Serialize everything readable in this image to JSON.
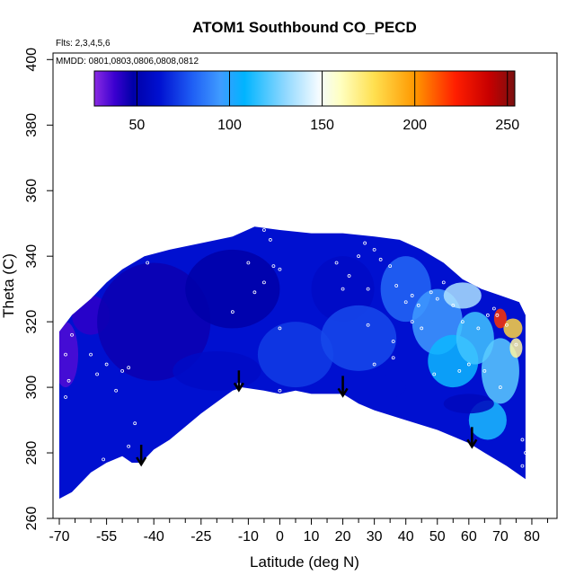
{
  "chart_data": {
    "type": "heatmap",
    "title": "ATOM1 Southbound CO_PECD",
    "annotations": {
      "flights": "Flts: 2,3,4,5,6",
      "dates": "MMDD: 0801,0803,0806,0808,0812"
    },
    "xlabel": "Latitude (deg N)",
    "ylabel": "Theta (C)",
    "xlim": [
      -72,
      88
    ],
    "ylim": [
      260,
      402
    ],
    "x_ticks_major": [
      -70,
      -55,
      -40,
      -25,
      -10,
      0,
      10,
      20,
      30,
      40,
      50,
      60,
      70,
      80
    ],
    "x_tick_labels": [
      "-70",
      "-55",
      "-40",
      "-25",
      "-10",
      "0",
      "10",
      "20",
      "30",
      "40",
      "50",
      "60",
      "70",
      "80"
    ],
    "x_ticks_minor": [
      -65,
      -60,
      -50,
      -45,
      -35,
      -30,
      -20,
      -15,
      -5,
      5,
      15,
      25,
      35,
      45,
      55,
      65,
      75,
      85
    ],
    "y_ticks": [
      260,
      280,
      300,
      320,
      340,
      360,
      380,
      400
    ],
    "y_tick_labels": [
      "260",
      "280",
      "300",
      "320",
      "340",
      "360",
      "380",
      "400"
    ],
    "colorbar": {
      "vmin": 27,
      "vmax": 254,
      "ticks": [
        50,
        100,
        150,
        200,
        250
      ],
      "tick_labels": [
        "50",
        "100",
        "150",
        "200",
        "250"
      ],
      "stops": [
        {
          "v": 27,
          "c": "#8a2be2"
        },
        {
          "v": 38,
          "c": "#3a00d0"
        },
        {
          "v": 48,
          "c": "#0000a8"
        },
        {
          "v": 62,
          "c": "#0010d0"
        },
        {
          "v": 80,
          "c": "#1f5ff5"
        },
        {
          "v": 95,
          "c": "#3f9bff"
        },
        {
          "v": 108,
          "c": "#00b4ff"
        },
        {
          "v": 130,
          "c": "#8fd8ff"
        },
        {
          "v": 148,
          "c": "#f4fbff"
        },
        {
          "v": 160,
          "c": "#ffffc0"
        },
        {
          "v": 178,
          "c": "#ffe050"
        },
        {
          "v": 200,
          "c": "#ff9800"
        },
        {
          "v": 222,
          "c": "#ff1e00"
        },
        {
          "v": 240,
          "c": "#c80000"
        },
        {
          "v": 254,
          "c": "#7a1010"
        }
      ]
    },
    "field": {
      "envelope_top": [
        [
          -70,
          317
        ],
        [
          -66,
          322
        ],
        [
          -60,
          327
        ],
        [
          -55,
          332
        ],
        [
          -50,
          336
        ],
        [
          -43,
          340
        ],
        [
          -35,
          342
        ],
        [
          -25,
          344
        ],
        [
          -15,
          346
        ],
        [
          -8,
          349
        ],
        [
          0,
          348
        ],
        [
          10,
          347
        ],
        [
          20,
          347
        ],
        [
          30,
          346
        ],
        [
          38,
          345
        ],
        [
          45,
          342
        ],
        [
          52,
          338
        ],
        [
          58,
          333
        ],
        [
          64,
          330
        ],
        [
          70,
          328
        ],
        [
          76,
          326
        ],
        [
          78,
          322
        ]
      ],
      "envelope_bottom": [
        [
          78,
          272
        ],
        [
          72,
          276
        ],
        [
          65,
          280
        ],
        [
          60,
          283
        ],
        [
          50,
          287
        ],
        [
          40,
          290
        ],
        [
          30,
          293
        ],
        [
          25,
          295
        ],
        [
          20,
          298
        ],
        [
          10,
          298
        ],
        [
          5,
          299
        ],
        [
          0,
          298
        ],
        [
          -5,
          299
        ],
        [
          -12,
          300
        ],
        [
          -15,
          299
        ],
        [
          -25,
          292
        ],
        [
          -30,
          288
        ],
        [
          -35,
          284
        ],
        [
          -40,
          281
        ],
        [
          -44,
          277
        ],
        [
          -47,
          277
        ],
        [
          -50,
          279
        ],
        [
          -55,
          277
        ],
        [
          -60,
          274
        ],
        [
          -66,
          268
        ],
        [
          -70,
          266
        ]
      ],
      "patches": [
        {
          "lat": -68,
          "theta": 310,
          "rlat": 4,
          "rtheta": 10,
          "v": 35
        },
        {
          "lat": -60,
          "theta": 322,
          "rlat": 6,
          "rtheta": 6,
          "v": 40
        },
        {
          "lat": -40,
          "theta": 320,
          "rlat": 18,
          "rtheta": 18,
          "v": 46
        },
        {
          "lat": -15,
          "theta": 330,
          "rlat": 15,
          "rtheta": 12,
          "v": 48
        },
        {
          "lat": -20,
          "theta": 305,
          "rlat": 14,
          "rtheta": 6,
          "v": 58
        },
        {
          "lat": 5,
          "theta": 310,
          "rlat": 12,
          "rtheta": 10,
          "v": 72
        },
        {
          "lat": 20,
          "theta": 330,
          "rlat": 10,
          "rtheta": 10,
          "v": 58
        },
        {
          "lat": 25,
          "theta": 315,
          "rlat": 12,
          "rtheta": 10,
          "v": 75
        },
        {
          "lat": 40,
          "theta": 330,
          "rlat": 8,
          "rtheta": 10,
          "v": 82
        },
        {
          "lat": 50,
          "theta": 320,
          "rlat": 8,
          "rtheta": 10,
          "v": 95
        },
        {
          "lat": 55,
          "theta": 308,
          "rlat": 8,
          "rtheta": 8,
          "v": 110
        },
        {
          "lat": 62,
          "theta": 315,
          "rlat": 6,
          "rtheta": 8,
          "v": 118
        },
        {
          "lat": 70,
          "theta": 305,
          "rlat": 6,
          "rtheta": 10,
          "v": 122
        },
        {
          "lat": 66,
          "theta": 290,
          "rlat": 6,
          "rtheta": 6,
          "v": 112
        },
        {
          "lat": 58,
          "theta": 328,
          "rlat": 6,
          "rtheta": 4,
          "v": 135
        },
        {
          "lat": 74,
          "theta": 318,
          "rlat": 3,
          "rtheta": 3,
          "v": 182
        },
        {
          "lat": 70,
          "theta": 321,
          "rlat": 2,
          "rtheta": 3,
          "v": 218
        },
        {
          "lat": 75,
          "theta": 312,
          "rlat": 2,
          "rtheta": 3,
          "v": 165
        },
        {
          "lat": 30,
          "theta": 300,
          "rlat": 10,
          "rtheta": 4,
          "v": 62
        },
        {
          "lat": 60,
          "theta": 295,
          "rlat": 8,
          "rtheta": 3,
          "v": 55
        }
      ],
      "background_value": 62,
      "samples": [
        [
          -68,
          297
        ],
        [
          -67,
          302
        ],
        [
          -68,
          310
        ],
        [
          -66,
          316
        ],
        [
          -60,
          310
        ],
        [
          -58,
          304
        ],
        [
          -55,
          307
        ],
        [
          -50,
          305
        ],
        [
          -48,
          306
        ],
        [
          -52,
          299
        ],
        [
          -46,
          289
        ],
        [
          -48,
          282
        ],
        [
          -56,
          278
        ],
        [
          -42,
          338
        ],
        [
          -10,
          338
        ],
        [
          -8,
          329
        ],
        [
          -5,
          332
        ],
        [
          -2,
          337
        ],
        [
          -15,
          323
        ],
        [
          -13,
          301
        ],
        [
          -3,
          345
        ],
        [
          -5,
          348
        ],
        [
          0,
          336
        ],
        [
          0,
          318
        ],
        [
          0,
          299
        ],
        [
          18,
          338
        ],
        [
          20,
          330
        ],
        [
          22,
          334
        ],
        [
          25,
          340
        ],
        [
          27,
          344
        ],
        [
          28,
          330
        ],
        [
          30,
          342
        ],
        [
          32,
          339
        ],
        [
          35,
          337
        ],
        [
          37,
          331
        ],
        [
          40,
          326
        ],
        [
          42,
          328
        ],
        [
          44,
          325
        ],
        [
          48,
          329
        ],
        [
          50,
          327
        ],
        [
          52,
          332
        ],
        [
          55,
          325
        ],
        [
          58,
          320
        ],
        [
          63,
          318
        ],
        [
          66,
          322
        ],
        [
          68,
          324
        ],
        [
          69,
          322
        ],
        [
          72,
          319
        ],
        [
          75,
          313
        ],
        [
          36,
          309
        ],
        [
          45,
          318
        ],
        [
          49,
          304
        ],
        [
          57,
          305
        ],
        [
          60,
          307
        ],
        [
          65,
          305
        ],
        [
          70,
          300
        ],
        [
          77,
          284
        ],
        [
          78,
          280
        ],
        [
          77,
          276
        ],
        [
          28,
          319
        ],
        [
          36,
          314
        ],
        [
          42,
          320
        ],
        [
          30,
          307
        ]
      ],
      "arrows_lat": [
        -44,
        -13,
        20,
        61
      ]
    }
  }
}
